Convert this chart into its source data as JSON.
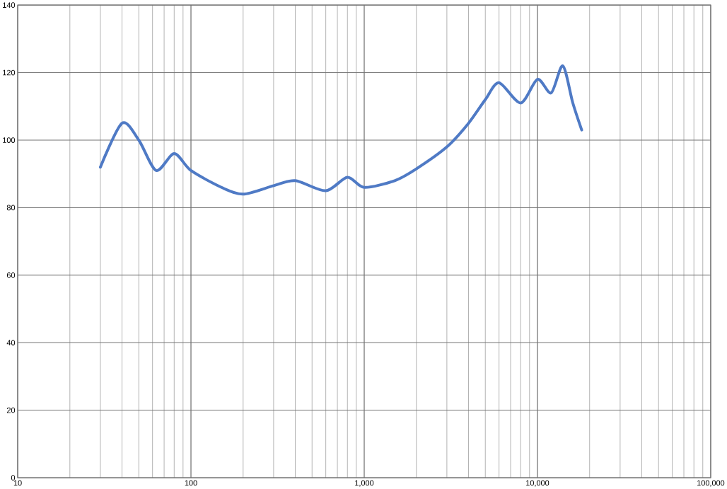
{
  "chart_data": {
    "type": "line",
    "log": "x",
    "grid": true,
    "marker": "none",
    "line_style": "solid",
    "xlim": [
      10,
      100000
    ],
    "ylim": [
      0,
      140
    ],
    "xticks": [
      {
        "value": 10,
        "label": "10"
      },
      {
        "value": 100,
        "label": "100"
      },
      {
        "value": 1000,
        "label": "1,000"
      },
      {
        "value": 10000,
        "label": "10,000"
      },
      {
        "value": 100000,
        "label": "100,000"
      }
    ],
    "yticks": [
      0,
      20,
      40,
      60,
      80,
      100,
      120,
      140
    ],
    "series": [
      {
        "color": "#4f7ac5",
        "x": [
          30,
          40,
          50,
          63,
          80,
          100,
          150,
          200,
          300,
          400,
          600,
          800,
          1000,
          1500,
          2000,
          3000,
          4000,
          5000,
          6000,
          8000,
          10000,
          12000,
          14000,
          16000,
          18000
        ],
        "values": [
          92,
          105,
          100,
          91,
          96,
          91,
          86,
          84,
          86.5,
          88,
          85,
          89,
          86,
          88,
          91.5,
          98,
          105,
          112,
          117,
          111,
          118,
          114,
          122,
          111,
          103
        ]
      }
    ]
  }
}
